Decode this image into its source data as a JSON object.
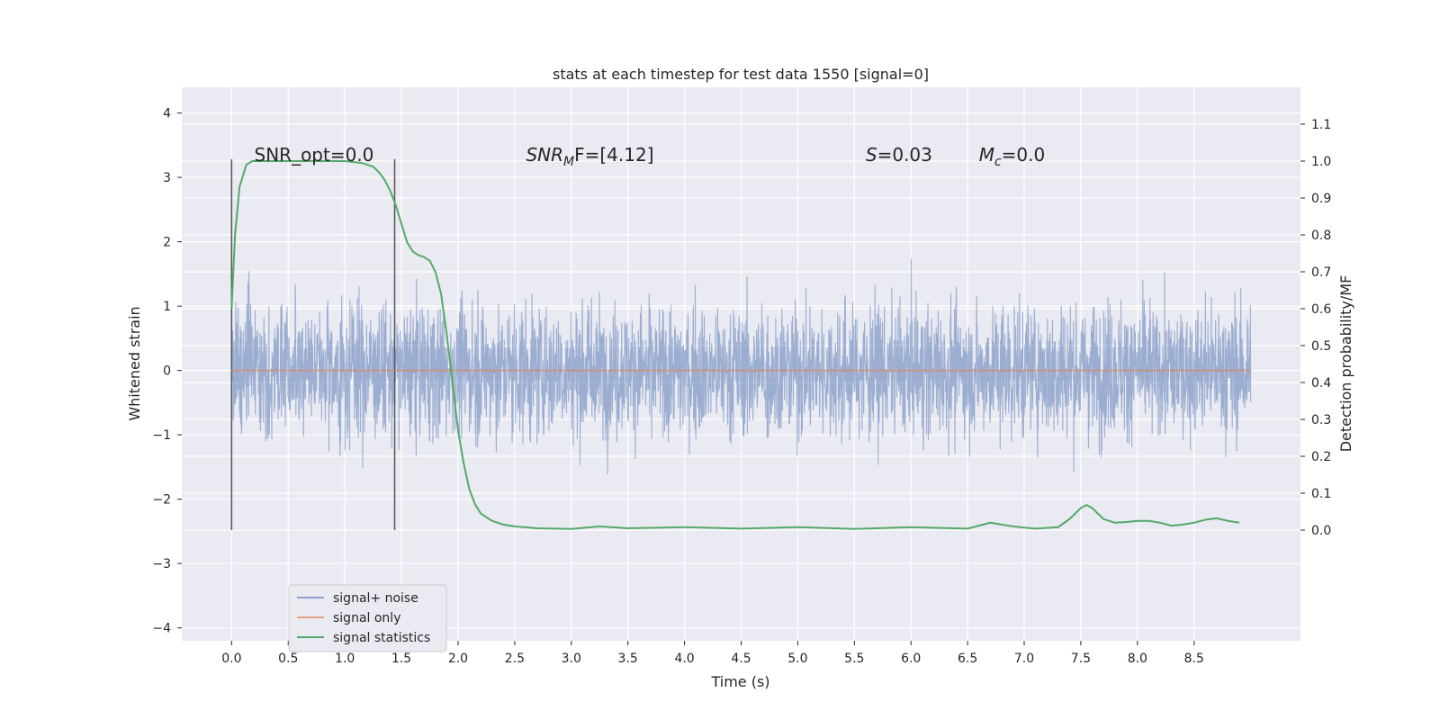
{
  "chart_data": {
    "type": "line",
    "title": "stats at each timestep for test data 1550 [signal=0]",
    "xlabel": "Time (s)",
    "ylabel": "Whitened strain",
    "ylabel_right": "Detection probability/MF",
    "xlim": [
      -0.44,
      9.44
    ],
    "ylim": [
      -4.2,
      4.4
    ],
    "ylim_right": [
      -0.3,
      1.2
    ],
    "x_ticks": [
      "0.0",
      "0.5",
      "1.0",
      "1.5",
      "2.0",
      "2.5",
      "3.0",
      "3.5",
      "4.0",
      "4.5",
      "5.0",
      "5.5",
      "6.0",
      "6.5",
      "7.0",
      "7.5",
      "8.0",
      "8.5"
    ],
    "y_ticks": [
      "−4",
      "−3",
      "−2",
      "−1",
      "0",
      "1",
      "2",
      "3",
      "4"
    ],
    "y_ticks_right": [
      "0.0",
      "0.1",
      "0.2",
      "0.3",
      "0.4",
      "0.5",
      "0.6",
      "0.7",
      "0.8",
      "0.9",
      "1.0",
      "1.1"
    ],
    "grid": true,
    "legend_position": "lower-left",
    "series": [
      {
        "name": "signal+ noise",
        "color": "#4c72b0",
        "kind": "noise",
        "x_range": [
          0.0,
          9.0
        ],
        "typical_amplitude": 1.3,
        "peak_amplitude": 4.0
      },
      {
        "name": "signal only",
        "color": "#dd8452",
        "x": [
          0.0,
          9.0
        ],
        "y": [
          0.0,
          0.0
        ]
      },
      {
        "name": "signal statistics",
        "color": "#55a868",
        "axis": "right",
        "x": [
          0.0,
          0.03,
          0.07,
          0.1,
          0.13,
          0.18,
          0.25,
          0.4,
          0.6,
          0.8,
          1.0,
          1.15,
          1.25,
          1.3,
          1.35,
          1.4,
          1.45,
          1.5,
          1.55,
          1.6,
          1.65,
          1.7,
          1.75,
          1.8,
          1.85,
          1.9,
          1.95,
          2.0,
          2.05,
          2.1,
          2.15,
          2.2,
          2.3,
          2.4,
          2.5,
          2.7,
          3.0,
          3.25,
          3.5,
          4.0,
          4.5,
          5.0,
          5.5,
          6.0,
          6.5,
          6.7,
          6.9,
          7.1,
          7.3,
          7.4,
          7.5,
          7.55,
          7.6,
          7.7,
          7.8,
          7.9,
          8.0,
          8.1,
          8.2,
          8.3,
          8.4,
          8.5,
          8.6,
          8.7,
          8.8,
          8.9
        ],
        "y": [
          0.6,
          0.8,
          0.93,
          0.96,
          0.99,
          1.0,
          1.0,
          1.0,
          1.0,
          1.0,
          1.0,
          0.995,
          0.985,
          0.97,
          0.95,
          0.92,
          0.88,
          0.83,
          0.78,
          0.755,
          0.745,
          0.74,
          0.73,
          0.7,
          0.64,
          0.53,
          0.4,
          0.27,
          0.18,
          0.11,
          0.07,
          0.045,
          0.025,
          0.015,
          0.01,
          0.005,
          0.003,
          0.01,
          0.005,
          0.008,
          0.004,
          0.008,
          0.003,
          0.008,
          0.004,
          0.02,
          0.01,
          0.004,
          0.008,
          0.03,
          0.06,
          0.068,
          0.06,
          0.03,
          0.02,
          0.022,
          0.025,
          0.025,
          0.02,
          0.012,
          0.015,
          0.02,
          0.028,
          0.032,
          0.025,
          0.02
        ]
      }
    ],
    "vertical_markers": [
      0.0,
      1.44
    ],
    "annotations": [
      {
        "x": 0.2,
        "y": 3.25,
        "text": "SNR_opt=0.0",
        "format": "plain"
      },
      {
        "x": 2.6,
        "y": 3.25,
        "base": "SNR",
        "sub": "M",
        "rest": "F=[4.12]",
        "format": "sub"
      },
      {
        "x": 5.6,
        "y": 3.25,
        "base": "S",
        "rest": "=0.03",
        "format": "italic"
      },
      {
        "x": 6.6,
        "y": 3.25,
        "base": "M",
        "sub": "c",
        "rest": "=0.0",
        "format": "sub"
      }
    ]
  }
}
